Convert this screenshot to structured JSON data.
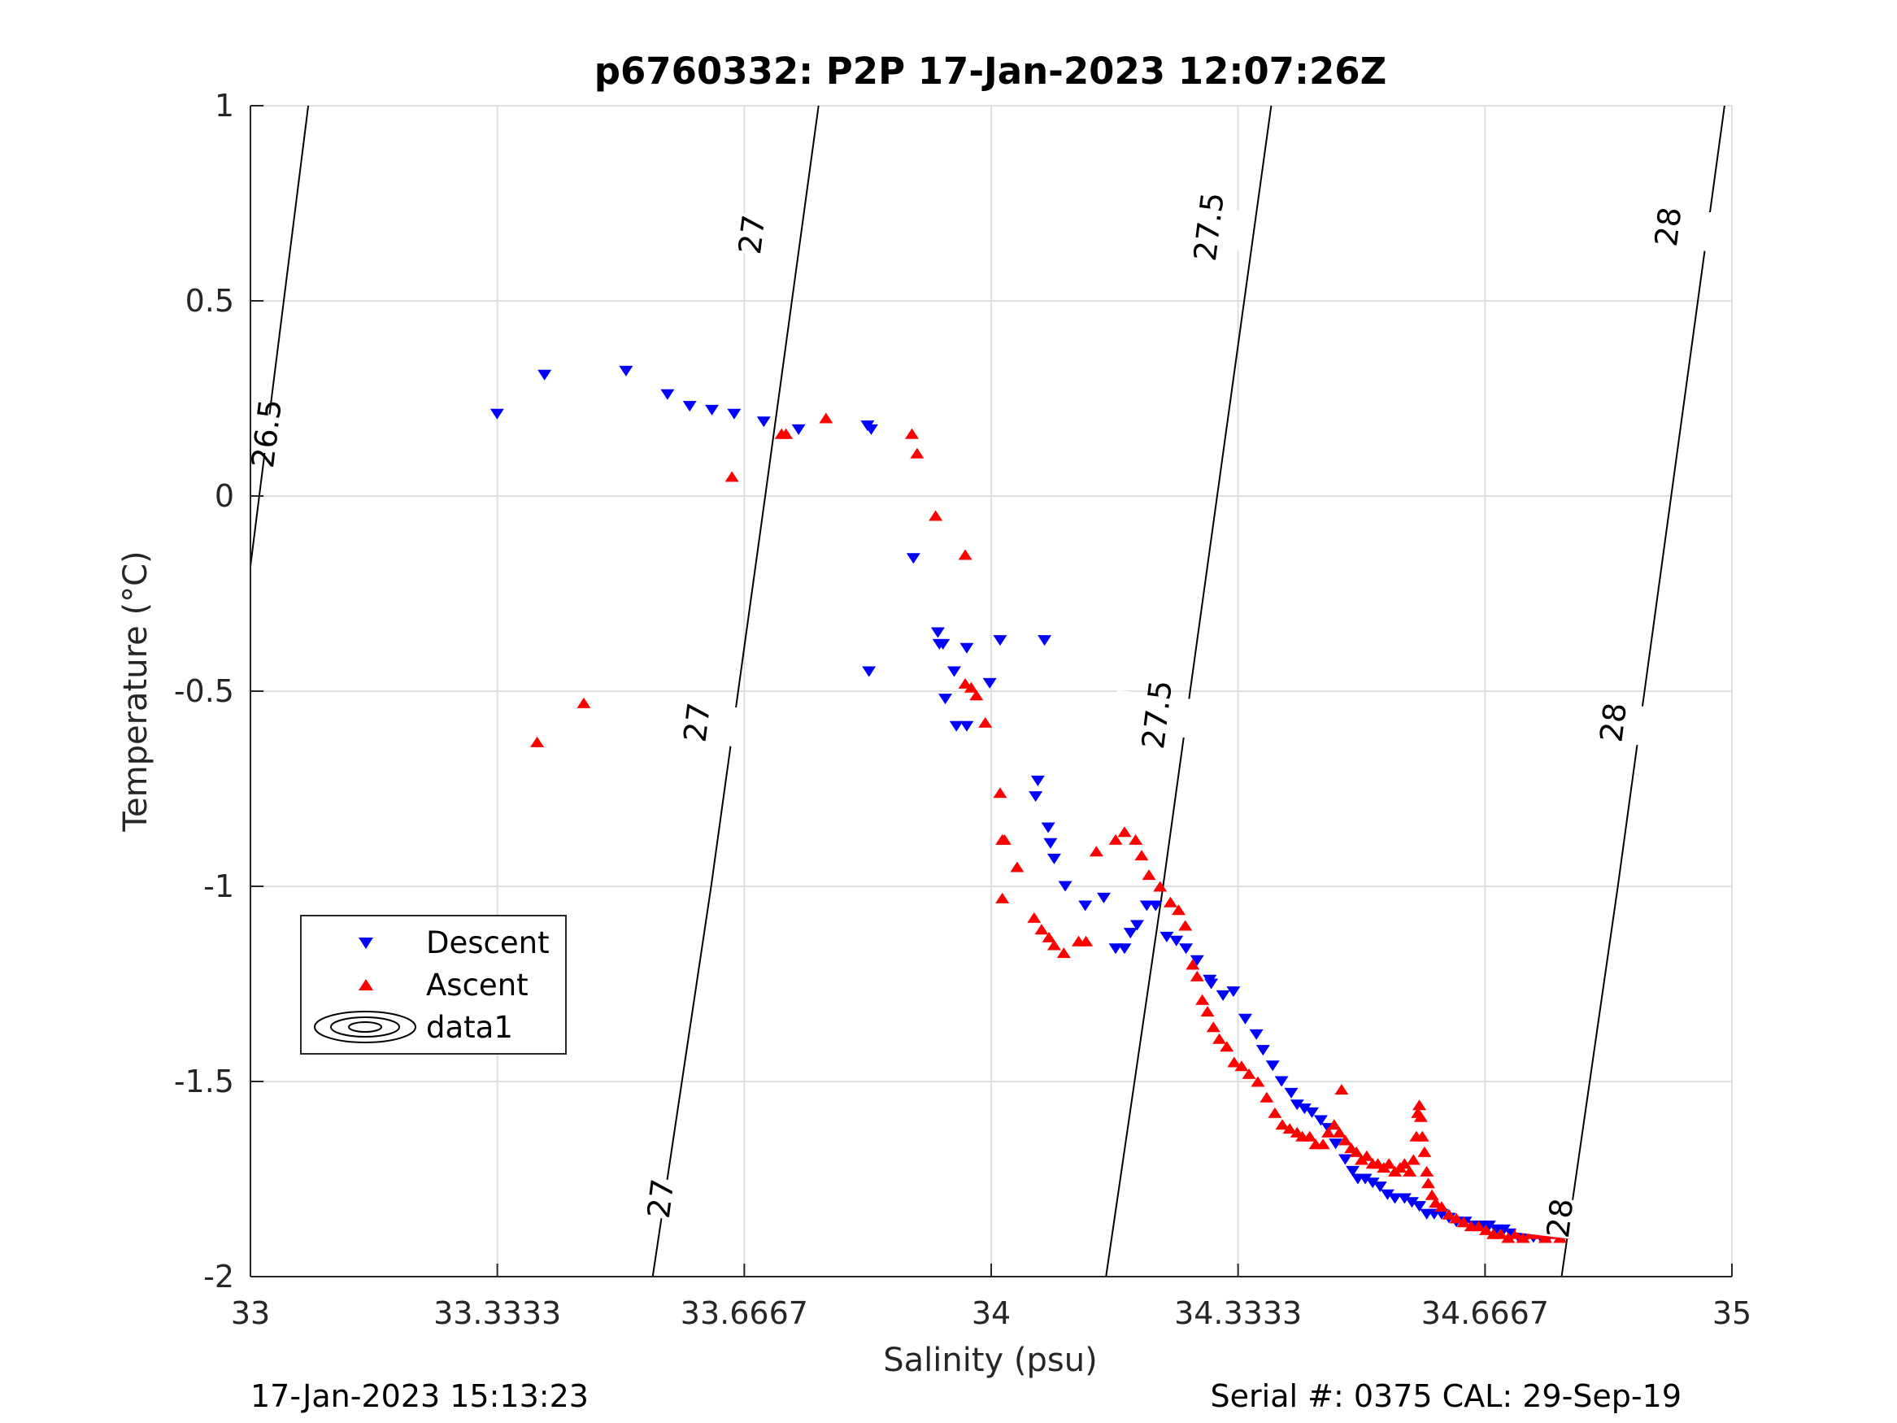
{
  "figure": {
    "title": "p6760332: P2P 17-Jan-2023 12:07:26Z",
    "footer_left": "17-Jan-2023 15:13:23",
    "footer_right": "Serial #: 0375  CAL: 29-Sep-19"
  },
  "chart_data": {
    "type": "scatter",
    "title": "p6760332: P2P 17-Jan-2023 12:07:26Z",
    "xlabel": "Salinity (psu)",
    "ylabel": "Temperature (°C)",
    "xlim": [
      33,
      35
    ],
    "ylim": [
      -2,
      1
    ],
    "xticks": [
      33,
      33.3333,
      33.6667,
      34,
      34.3333,
      34.6667,
      35
    ],
    "xtick_labels": [
      "33",
      "33.3333",
      "33.6667",
      "34",
      "34.3333",
      "34.6667",
      "35"
    ],
    "yticks": [
      -2,
      -1.5,
      -1,
      -0.5,
      0,
      0.5,
      1
    ],
    "ytick_labels": [
      "-2",
      "-1.5",
      "-1",
      "-0.5",
      "0",
      "0.5",
      "1"
    ],
    "grid": true,
    "legend": {
      "position": "lower-left",
      "entries": [
        "Descent",
        "Ascent",
        "data1"
      ]
    },
    "series": [
      {
        "name": "Descent",
        "marker": "triangle-down",
        "color": "#0000ff",
        "points": [
          [
            33.333,
            0.21
          ],
          [
            33.397,
            0.31
          ],
          [
            33.507,
            0.32
          ],
          [
            33.563,
            0.26
          ],
          [
            33.593,
            0.23
          ],
          [
            33.623,
            0.22
          ],
          [
            33.653,
            0.21
          ],
          [
            33.693,
            0.19
          ],
          [
            33.74,
            0.17
          ],
          [
            33.833,
            0.18
          ],
          [
            33.838,
            0.17
          ],
          [
            33.895,
            -0.16
          ],
          [
            33.928,
            -0.35
          ],
          [
            33.93,
            -0.38
          ],
          [
            33.935,
            -0.38
          ],
          [
            33.95,
            -0.45
          ],
          [
            33.953,
            -0.59
          ],
          [
            33.967,
            -0.59
          ],
          [
            33.967,
            -0.39
          ],
          [
            33.998,
            -0.48
          ],
          [
            34.012,
            -0.37
          ],
          [
            34.072,
            -0.37
          ],
          [
            33.938,
            -0.52
          ],
          [
            33.835,
            -0.45
          ],
          [
            34.063,
            -0.73
          ],
          [
            34.06,
            -0.77
          ],
          [
            34.077,
            -0.85
          ],
          [
            34.08,
            -0.89
          ],
          [
            34.085,
            -0.93
          ],
          [
            34.1,
            -1.0
          ],
          [
            34.127,
            -1.05
          ],
          [
            34.152,
            -1.03
          ],
          [
            34.168,
            -1.16
          ],
          [
            34.18,
            -1.16
          ],
          [
            34.188,
            -1.12
          ],
          [
            34.197,
            -1.1
          ],
          [
            34.21,
            -1.05
          ],
          [
            34.222,
            -1.05
          ],
          [
            34.237,
            -1.13
          ],
          [
            34.25,
            -1.14
          ],
          [
            34.263,
            -1.16
          ],
          [
            34.278,
            -1.19
          ],
          [
            34.295,
            -1.24
          ],
          [
            34.297,
            -1.25
          ],
          [
            34.313,
            -1.28
          ],
          [
            34.327,
            -1.27
          ],
          [
            34.343,
            -1.34
          ],
          [
            34.358,
            -1.38
          ],
          [
            34.367,
            -1.42
          ],
          [
            34.38,
            -1.46
          ],
          [
            34.392,
            -1.5
          ],
          [
            34.405,
            -1.53
          ],
          [
            34.413,
            -1.56
          ],
          [
            34.423,
            -1.57
          ],
          [
            34.433,
            -1.58
          ],
          [
            34.445,
            -1.6
          ],
          [
            34.455,
            -1.62
          ],
          [
            34.465,
            -1.66
          ],
          [
            34.478,
            -1.7
          ],
          [
            34.488,
            -1.73
          ],
          [
            34.495,
            -1.75
          ],
          [
            34.505,
            -1.75
          ],
          [
            34.515,
            -1.76
          ],
          [
            34.525,
            -1.77
          ],
          [
            34.535,
            -1.79
          ],
          [
            34.545,
            -1.8
          ],
          [
            34.558,
            -1.8
          ],
          [
            34.568,
            -1.81
          ],
          [
            34.578,
            -1.82
          ],
          [
            34.588,
            -1.84
          ],
          [
            34.598,
            -1.84
          ],
          [
            34.608,
            -1.84
          ],
          [
            34.618,
            -1.85
          ],
          [
            34.628,
            -1.86
          ],
          [
            34.64,
            -1.86
          ],
          [
            34.652,
            -1.87
          ],
          [
            34.662,
            -1.87
          ],
          [
            34.672,
            -1.87
          ],
          [
            34.682,
            -1.88
          ],
          [
            34.692,
            -1.88
          ],
          [
            34.702,
            -1.89
          ],
          [
            34.712,
            -1.9
          ],
          [
            34.722,
            -1.9
          ],
          [
            34.732,
            -1.9
          ],
          [
            34.742,
            -1.9
          ],
          [
            34.752,
            -1.9
          ],
          [
            34.762,
            -1.89
          ],
          [
            34.772,
            -1.89
          ],
          [
            34.782,
            -1.89
          ]
        ]
      },
      {
        "name": "Ascent",
        "marker": "triangle-up",
        "color": "#ff0000",
        "points": [
          [
            33.387,
            -0.63
          ],
          [
            33.45,
            -0.53
          ],
          [
            33.65,
            0.05
          ],
          [
            33.717,
            0.16
          ],
          [
            33.723,
            0.16
          ],
          [
            33.777,
            0.2
          ],
          [
            33.893,
            0.16
          ],
          [
            33.9,
            0.11
          ],
          [
            33.925,
            -0.05
          ],
          [
            33.965,
            -0.15
          ],
          [
            33.965,
            -0.48
          ],
          [
            33.973,
            -0.49
          ],
          [
            33.98,
            -0.51
          ],
          [
            33.992,
            -0.58
          ],
          [
            34.012,
            -0.76
          ],
          [
            34.015,
            -0.88
          ],
          [
            34.018,
            -0.88
          ],
          [
            34.035,
            -0.95
          ],
          [
            34.015,
            -1.03
          ],
          [
            34.058,
            -1.08
          ],
          [
            34.068,
            -1.11
          ],
          [
            34.078,
            -1.13
          ],
          [
            34.085,
            -1.15
          ],
          [
            34.098,
            -1.17
          ],
          [
            34.118,
            -1.14
          ],
          [
            34.128,
            -1.14
          ],
          [
            34.142,
            -0.91
          ],
          [
            34.168,
            -0.88
          ],
          [
            34.18,
            -0.86
          ],
          [
            34.195,
            -0.88
          ],
          [
            34.203,
            -0.92
          ],
          [
            34.213,
            -0.97
          ],
          [
            34.228,
            -1.0
          ],
          [
            34.242,
            -1.04
          ],
          [
            34.253,
            -1.06
          ],
          [
            34.262,
            -1.1
          ],
          [
            34.272,
            -1.2
          ],
          [
            34.278,
            -1.23
          ],
          [
            34.285,
            -1.29
          ],
          [
            34.292,
            -1.32
          ],
          [
            34.3,
            -1.36
          ],
          [
            34.308,
            -1.39
          ],
          [
            34.318,
            -1.41
          ],
          [
            34.328,
            -1.45
          ],
          [
            34.338,
            -1.46
          ],
          [
            34.348,
            -1.48
          ],
          [
            34.36,
            -1.5
          ],
          [
            34.372,
            -1.54
          ],
          [
            34.383,
            -1.58
          ],
          [
            34.393,
            -1.61
          ],
          [
            34.403,
            -1.62
          ],
          [
            34.413,
            -1.63
          ],
          [
            34.42,
            -1.64
          ],
          [
            34.43,
            -1.64
          ],
          [
            34.438,
            -1.66
          ],
          [
            34.448,
            -1.66
          ],
          [
            34.455,
            -1.63
          ],
          [
            34.463,
            -1.61
          ],
          [
            34.47,
            -1.63
          ],
          [
            34.478,
            -1.65
          ],
          [
            34.486,
            -1.67
          ],
          [
            34.493,
            -1.68
          ],
          [
            34.5,
            -1.7
          ],
          [
            34.507,
            -1.69
          ],
          [
            34.515,
            -1.71
          ],
          [
            34.522,
            -1.71
          ],
          [
            34.53,
            -1.72
          ],
          [
            34.537,
            -1.71
          ],
          [
            34.545,
            -1.73
          ],
          [
            34.552,
            -1.72
          ],
          [
            34.558,
            -1.71
          ],
          [
            34.565,
            -1.73
          ],
          [
            34.57,
            -1.7
          ],
          [
            34.574,
            -1.64
          ],
          [
            34.576,
            -1.58
          ],
          [
            34.578,
            -1.56
          ],
          [
            34.58,
            -1.59
          ],
          [
            34.582,
            -1.64
          ],
          [
            34.585,
            -1.68
          ],
          [
            34.588,
            -1.73
          ],
          [
            34.59,
            -1.76
          ],
          [
            34.595,
            -1.79
          ],
          [
            34.6,
            -1.81
          ],
          [
            34.608,
            -1.82
          ],
          [
            34.618,
            -1.84
          ],
          [
            34.628,
            -1.85
          ],
          [
            34.638,
            -1.86
          ],
          [
            34.648,
            -1.87
          ],
          [
            34.658,
            -1.87
          ],
          [
            34.668,
            -1.88
          ],
          [
            34.678,
            -1.89
          ],
          [
            34.688,
            -1.89
          ],
          [
            34.698,
            -1.9
          ],
          [
            34.708,
            -1.89
          ],
          [
            34.718,
            -1.9
          ],
          [
            34.728,
            -1.89
          ],
          [
            34.738,
            -1.89
          ],
          [
            34.748,
            -1.9
          ],
          [
            34.758,
            -1.89
          ],
          [
            34.768,
            -1.9
          ],
          [
            34.778,
            -1.89
          ],
          [
            34.783,
            -1.88
          ],
          [
            34.473,
            -1.52
          ]
        ]
      }
    ],
    "contours": [
      {
        "level": "26.5",
        "labels": [
          "26.5"
        ],
        "points": [
          [
            33.0,
            -0.18
          ],
          [
            33.078,
            1.0
          ]
        ]
      },
      {
        "level": "27",
        "labels": [
          "27",
          "27",
          "27"
        ],
        "points": [
          [
            33.543,
            -2.0
          ],
          [
            33.7,
            0.0
          ],
          [
            33.7,
            0.0
          ],
          [
            33.7,
            0.0
          ]
        ]
      },
      {
        "level": "27.5",
        "labels": [
          "27.5",
          "27.5"
        ],
        "points": [
          [
            34.155,
            -2.0
          ],
          [
            34.32,
            0.0
          ]
        ]
      },
      {
        "level": "28",
        "labels": [
          "28",
          "28",
          "28"
        ],
        "points": [
          [
            34.77,
            -2.0
          ],
          [
            34.94,
            0.0
          ]
        ]
      }
    ]
  }
}
